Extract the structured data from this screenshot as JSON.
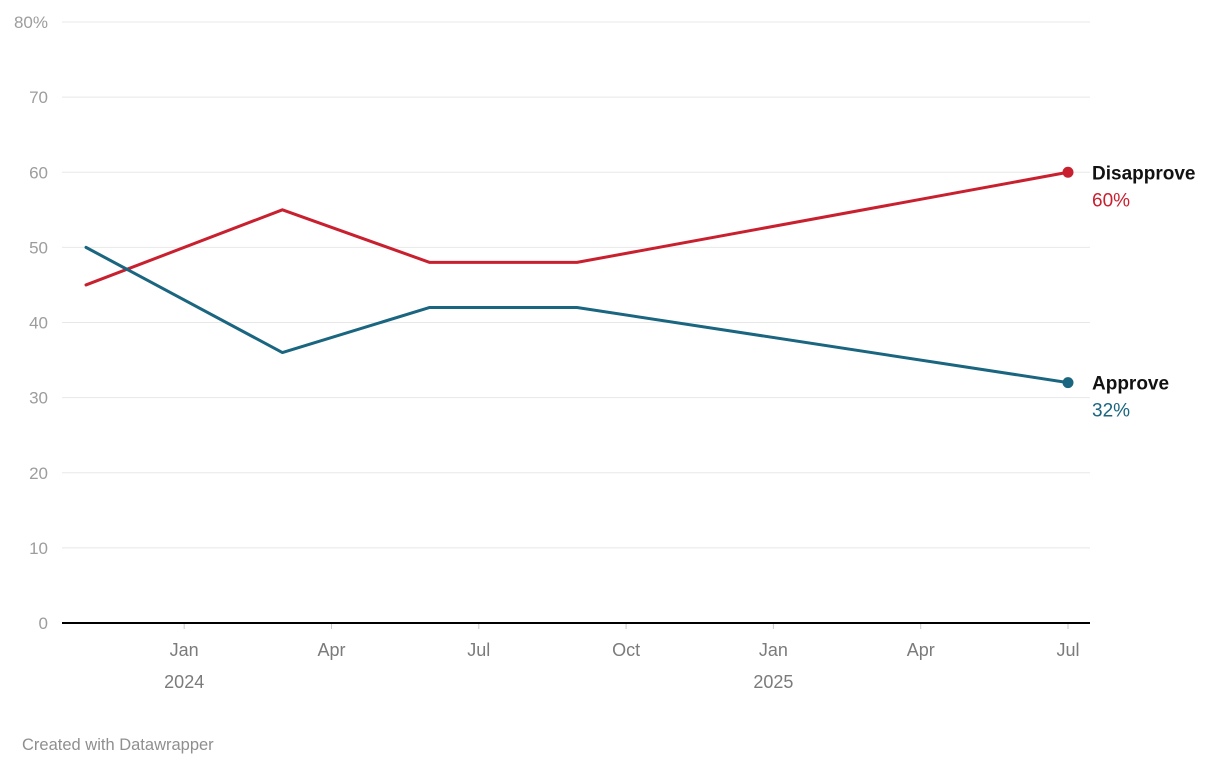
{
  "chart": {
    "credit": "Created with Datawrapper"
  },
  "chart_data": {
    "type": "line",
    "title": "",
    "xlabel": "",
    "ylabel": "",
    "grid": "horizontal",
    "legend_position": "direct-labels-right",
    "xlim": [
      -2,
      18
    ],
    "ylim": [
      0,
      80
    ],
    "x_unit": "months relative to Jan 2024",
    "x": [
      -2,
      2,
      5,
      8,
      18
    ],
    "series": [
      {
        "name": "Disapprove",
        "color": "#c9202f",
        "values": [
          45,
          55,
          48,
          48,
          60
        ],
        "end_label": "Disapprove",
        "end_value": "60%"
      },
      {
        "name": "Approve",
        "color": "#1a657f",
        "values": [
          50,
          36,
          42,
          42,
          32
        ],
        "end_label": "Approve",
        "end_value": "32%"
      }
    ],
    "y_ticks": [
      {
        "v": 0,
        "label": "0"
      },
      {
        "v": 10,
        "label": "10"
      },
      {
        "v": 20,
        "label": "20"
      },
      {
        "v": 30,
        "label": "30"
      },
      {
        "v": 40,
        "label": "40"
      },
      {
        "v": 50,
        "label": "50"
      },
      {
        "v": 60,
        "label": "60"
      },
      {
        "v": 70,
        "label": "70"
      },
      {
        "v": 80,
        "label": "80%"
      }
    ],
    "x_ticks": [
      {
        "t": 0,
        "label": "Jan",
        "year": "2024"
      },
      {
        "t": 3,
        "label": "Apr"
      },
      {
        "t": 6,
        "label": "Jul"
      },
      {
        "t": 9,
        "label": "Oct"
      },
      {
        "t": 12,
        "label": "Jan",
        "year": "2025"
      },
      {
        "t": 15,
        "label": "Apr"
      },
      {
        "t": 18,
        "label": "Jul"
      }
    ],
    "colors": {
      "grid": "#e8e8e8",
      "baseline": "#000000",
      "y_tick_text": "#9d9d9d",
      "x_tick_text": "#7b7b7b"
    }
  }
}
